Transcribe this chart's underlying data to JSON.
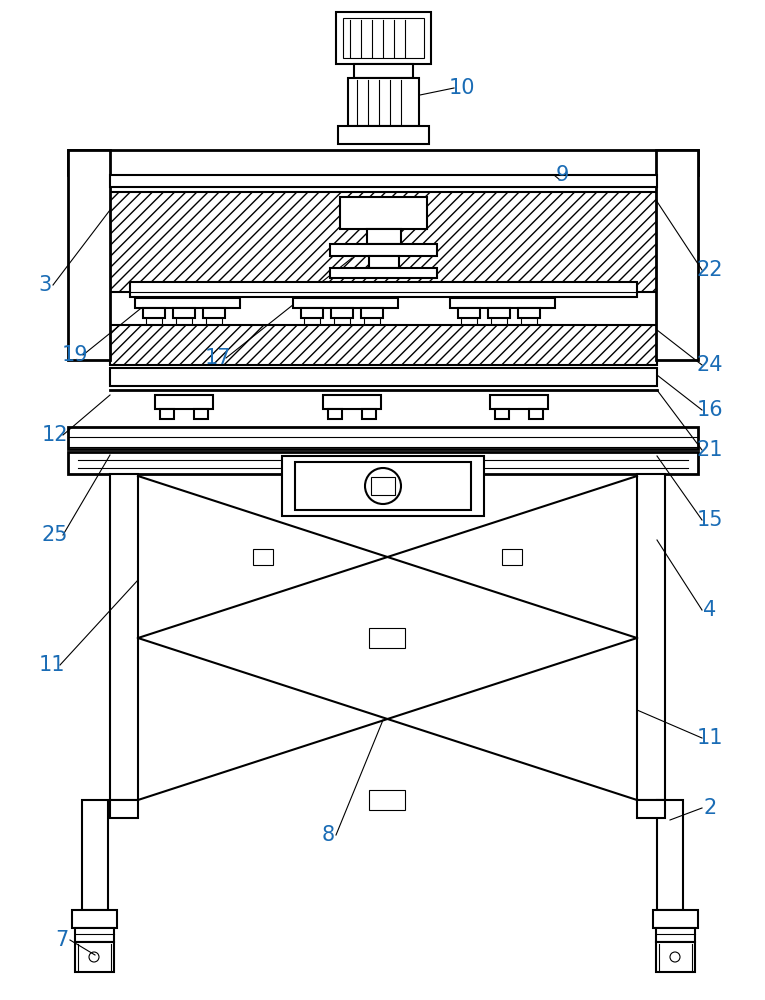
{
  "bg_color": "#ffffff",
  "line_color": "#000000",
  "label_color": "#1a6cb5",
  "lw_main": 1.5,
  "lw_thin": 0.8,
  "lw_heavy": 2.0
}
